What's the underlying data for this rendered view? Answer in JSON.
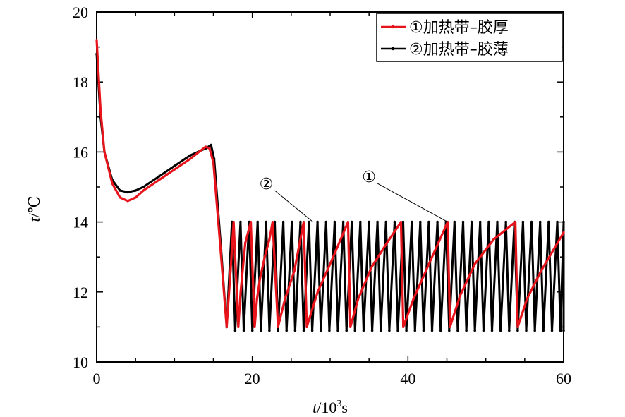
{
  "chart_data": {
    "type": "line",
    "title": "",
    "xlabel_var": "t",
    "xlabel_unit": "/10",
    "xlabel_exp": "3",
    "xlabel_tail": "s",
    "ylabel_var": "t",
    "ylabel_unit": "/℃",
    "xlim": [
      0,
      60
    ],
    "ylim": [
      10,
      20
    ],
    "xticks": [
      0,
      20,
      40,
      60
    ],
    "yticks": [
      10,
      12,
      14,
      16,
      18,
      20
    ],
    "grid": false,
    "legend_position": "top-right",
    "colors": {
      "series1": "#e8141c",
      "series2": "#000000"
    },
    "series": [
      {
        "name": "①加热带–胶厚",
        "x": [
          0,
          0.5,
          1,
          2,
          3,
          4,
          5,
          6,
          8,
          10,
          12,
          14,
          14.5,
          15,
          16,
          16.7,
          17.2,
          17.6,
          18.2,
          18.5,
          19.1,
          19.8,
          20.3,
          20.6,
          21.0,
          21.6,
          22.2,
          22.6,
          23.3,
          24.2,
          25.4,
          26.6,
          27.0,
          28.4,
          30.2,
          32.3,
          32.6,
          33.6,
          35.3,
          37.3,
          39.1,
          39.4,
          40.7,
          42.7,
          45.1,
          45.4,
          46.7,
          48.6,
          51.0,
          53.8,
          54.1,
          55.3,
          57.1,
          60.0
        ],
        "y": [
          19.2,
          17.2,
          16.0,
          15.1,
          14.7,
          14.6,
          14.7,
          14.9,
          15.2,
          15.5,
          15.8,
          16.15,
          16.1,
          15.7,
          13.0,
          11.0,
          12.6,
          14.0,
          11.0,
          12.0,
          13.4,
          14.0,
          11.0,
          11.8,
          12.4,
          13.0,
          13.5,
          14.0,
          11.0,
          11.8,
          12.6,
          14.0,
          11.0,
          12.0,
          12.9,
          14.0,
          11.0,
          11.8,
          12.7,
          13.4,
          14.0,
          11.0,
          11.8,
          12.8,
          14.0,
          11.0,
          11.9,
          12.8,
          13.5,
          14.0,
          11.0,
          11.8,
          12.6,
          13.7
        ]
      },
      {
        "name": "②加热带–胶薄",
        "x": [
          0,
          0.5,
          1,
          2,
          3,
          4,
          5,
          6,
          8,
          10,
          12,
          14,
          14.7,
          15.1,
          16,
          16.7
        ],
        "y": [
          18.8,
          17.0,
          16.0,
          15.2,
          14.9,
          14.85,
          14.9,
          15.0,
          15.3,
          15.6,
          15.9,
          16.1,
          16.2,
          15.8,
          13.2,
          11.0
        ],
        "oscillation": {
          "start": 16.7,
          "end": 60.0,
          "period": 1.1,
          "low": 10.9,
          "high": 14.0
        }
      }
    ],
    "annotations": [
      {
        "label": "②",
        "x": 21.8,
        "y": 15.1,
        "target_x": 27.8,
        "target_y": 14.0
      },
      {
        "label": "①",
        "x": 35.0,
        "y": 15.3,
        "target_x": 45.1,
        "target_y": 14.0
      }
    ]
  }
}
